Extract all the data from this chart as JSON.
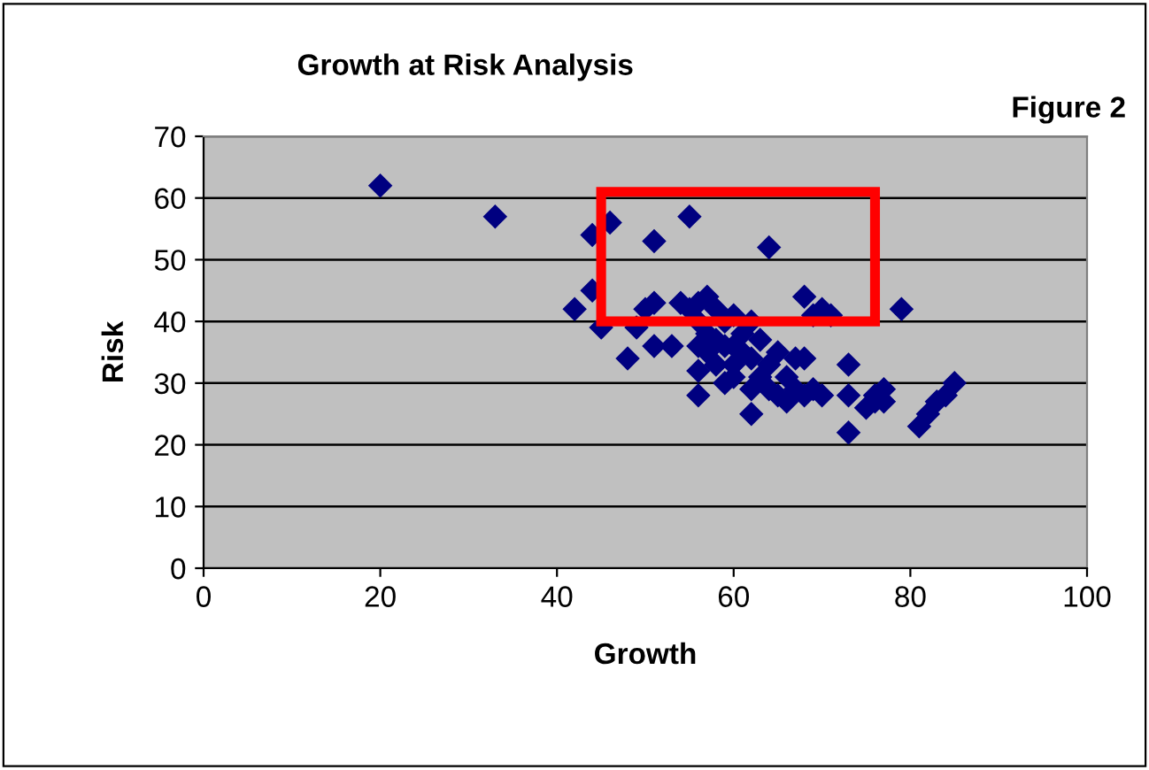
{
  "chart_data": {
    "type": "scatter",
    "title": "Growth at Risk Analysis",
    "xlabel": "Growth",
    "ylabel": "Risk",
    "annotations": [
      "Figure 2"
    ],
    "x": [
      20,
      33,
      44,
      46,
      44,
      42,
      45,
      48,
      49,
      50,
      51,
      51,
      51,
      53,
      54,
      55,
      56,
      55,
      57,
      56,
      56,
      56,
      56,
      57,
      57,
      58,
      58,
      58,
      59,
      59,
      59,
      60,
      60,
      60,
      60,
      61,
      61,
      62,
      62,
      62,
      62,
      63,
      63,
      64,
      64,
      64,
      65,
      65,
      66,
      66,
      67,
      67,
      68,
      68,
      68,
      69,
      69,
      70,
      70,
      71,
      73,
      73,
      73,
      75,
      76,
      76,
      77,
      77,
      79,
      81,
      82,
      83,
      84,
      85
    ],
    "values": [
      62,
      57,
      54,
      56,
      45,
      42,
      39,
      34,
      39,
      42,
      53,
      43,
      36,
      36,
      43,
      57,
      43,
      42,
      44,
      40,
      36,
      32,
      28,
      38,
      35,
      42,
      37,
      33,
      40,
      36,
      30,
      41,
      36,
      33,
      31,
      38,
      35,
      40,
      34,
      29,
      25,
      37,
      31,
      52,
      33,
      29,
      28,
      35,
      31,
      27,
      34,
      29,
      44,
      34,
      28,
      41,
      29,
      42,
      28,
      41,
      33,
      28,
      22,
      26,
      27,
      28,
      29,
      27,
      42,
      23,
      25,
      27,
      28,
      30
    ],
    "color": "#000080",
    "marker": "diamond",
    "xlim": [
      0,
      100
    ],
    "xticks": [
      0,
      20,
      40,
      60,
      80,
      100
    ],
    "ylim": [
      0,
      70
    ],
    "yticks": [
      0,
      10,
      20,
      30,
      40,
      50,
      60,
      70
    ],
    "grid": "y",
    "legend": false
  }
}
